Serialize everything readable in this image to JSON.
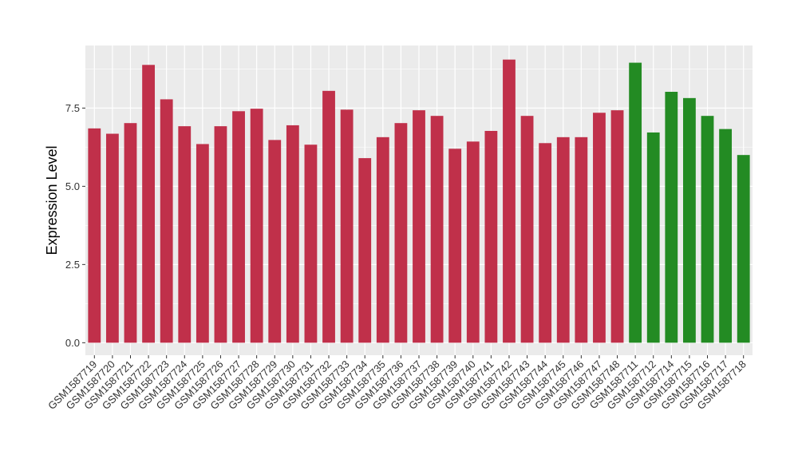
{
  "chart_data": {
    "type": "bar",
    "ylabel": "Expression Level",
    "xlabel": "",
    "ylim": [
      -0.4,
      9.5
    ],
    "yticks": [
      0.0,
      2.5,
      5.0,
      7.5
    ],
    "ytick_labels": [
      "0.0",
      "2.5",
      "5.0",
      "7.5"
    ],
    "grid": true,
    "legend": "none",
    "colors": {
      "group1": "#c0304a",
      "group2": "#238b23",
      "panel": "#ebebeb",
      "gridline": "#ffffff"
    },
    "categories": [
      "GSM1587719",
      "GSM1587720",
      "GSM1587721",
      "GSM1587722",
      "GSM1587723",
      "GSM1587724",
      "GSM1587725",
      "GSM1587726",
      "GSM1587727",
      "GSM1587728",
      "GSM1587729",
      "GSM1587730",
      "GSM1587731",
      "GSM1587732",
      "GSM1587733",
      "GSM1587734",
      "GSM1587735",
      "GSM1587736",
      "GSM1587737",
      "GSM1587738",
      "GSM1587739",
      "GSM1587740",
      "GSM1587741",
      "GSM1587742",
      "GSM1587743",
      "GSM1587744",
      "GSM1587745",
      "GSM1587746",
      "GSM1587747",
      "GSM1587748",
      "GSM1587711",
      "GSM1587712",
      "GSM1587714",
      "GSM1587715",
      "GSM1587716",
      "GSM1587717",
      "GSM1587718"
    ],
    "values": [
      6.85,
      6.68,
      7.02,
      8.88,
      7.78,
      6.92,
      6.35,
      6.92,
      7.4,
      7.48,
      6.48,
      6.95,
      6.33,
      8.05,
      7.45,
      5.9,
      6.57,
      7.02,
      7.43,
      7.25,
      6.2,
      6.43,
      6.77,
      9.05,
      7.25,
      6.38,
      6.57,
      6.57,
      7.35,
      7.43,
      8.95,
      6.72,
      8.02,
      7.82,
      7.25,
      6.83,
      6.0
    ],
    "groups": [
      "group1",
      "group1",
      "group1",
      "group1",
      "group1",
      "group1",
      "group1",
      "group1",
      "group1",
      "group1",
      "group1",
      "group1",
      "group1",
      "group1",
      "group1",
      "group1",
      "group1",
      "group1",
      "group1",
      "group1",
      "group1",
      "group1",
      "group1",
      "group1",
      "group1",
      "group1",
      "group1",
      "group1",
      "group1",
      "group1",
      "group2",
      "group2",
      "group2",
      "group2",
      "group2",
      "group2",
      "group2"
    ]
  }
}
